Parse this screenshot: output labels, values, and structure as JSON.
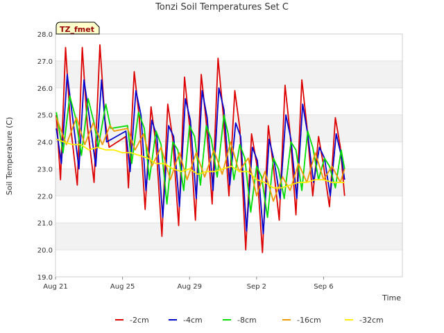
{
  "chart_data": {
    "type": "line",
    "title": "Tonzi Soil Temperatures Set C",
    "xlabel": "Time",
    "ylabel": "Soil Temperature (C)",
    "site_badge": "TZ_fmet",
    "x_start": "Aug 21",
    "x_range_days": [
      0,
      20.7
    ],
    "xticks": [
      {
        "label": "Aug 21",
        "day": 0
      },
      {
        "label": "Aug 25",
        "day": 4
      },
      {
        "label": "Aug 29",
        "day": 8
      },
      {
        "label": "Sep 2",
        "day": 12
      },
      {
        "label": "Sep 6",
        "day": 16
      }
    ],
    "ylim": [
      19.0,
      28.0
    ],
    "yticks": [
      "19.0",
      "20.0",
      "21.0",
      "22.0",
      "23.0",
      "24.0",
      "25.0",
      "26.0",
      "27.0",
      "28.0"
    ],
    "grid": "horizontal alternating bands",
    "legend_position": "bottom",
    "series": [
      {
        "name": "-2cm",
        "color": "#dd0000",
        "points": [
          [
            0.05,
            25.0
          ],
          [
            0.3,
            22.6
          ],
          [
            0.6,
            27.5
          ],
          [
            0.9,
            24.6
          ],
          [
            1.3,
            22.4
          ],
          [
            1.6,
            27.5
          ],
          [
            1.9,
            24.6
          ],
          [
            2.3,
            22.5
          ],
          [
            2.65,
            27.6
          ],
          [
            2.95,
            24.8
          ],
          [
            3.2,
            23.8
          ],
          [
            4.2,
            24.2
          ],
          [
            4.35,
            22.3
          ],
          [
            4.7,
            26.6
          ],
          [
            5.0,
            24.9
          ],
          [
            5.35,
            21.5
          ],
          [
            5.7,
            25.3
          ],
          [
            6.0,
            23.9
          ],
          [
            6.35,
            20.5
          ],
          [
            6.7,
            25.4
          ],
          [
            7.0,
            24.1
          ],
          [
            7.35,
            20.9
          ],
          [
            7.7,
            26.4
          ],
          [
            8.0,
            24.6
          ],
          [
            8.35,
            21.1
          ],
          [
            8.7,
            26.5
          ],
          [
            9.0,
            24.7
          ],
          [
            9.35,
            21.7
          ],
          [
            9.7,
            27.1
          ],
          [
            10.0,
            25.1
          ],
          [
            10.35,
            22.0
          ],
          [
            10.7,
            25.9
          ],
          [
            11.0,
            24.5
          ],
          [
            11.35,
            20.0
          ],
          [
            11.7,
            24.3
          ],
          [
            12.0,
            23.2
          ],
          [
            12.35,
            19.9
          ],
          [
            12.7,
            24.6
          ],
          [
            13.0,
            23.1
          ],
          [
            13.35,
            21.1
          ],
          [
            13.7,
            26.1
          ],
          [
            14.0,
            24.3
          ],
          [
            14.35,
            21.3
          ],
          [
            14.7,
            26.3
          ],
          [
            15.0,
            24.6
          ],
          [
            15.35,
            22.0
          ],
          [
            15.7,
            24.2
          ],
          [
            16.0,
            23.1
          ],
          [
            16.35,
            21.6
          ],
          [
            16.7,
            24.9
          ],
          [
            17.0,
            23.8
          ],
          [
            17.25,
            22.0
          ]
        ]
      },
      {
        "name": "-4cm",
        "color": "#0000cc",
        "points": [
          [
            0.05,
            24.5
          ],
          [
            0.35,
            23.2
          ],
          [
            0.7,
            26.5
          ],
          [
            1.0,
            25.0
          ],
          [
            1.4,
            23.0
          ],
          [
            1.7,
            26.3
          ],
          [
            2.0,
            25.0
          ],
          [
            2.4,
            23.1
          ],
          [
            2.75,
            26.3
          ],
          [
            3.05,
            24.0
          ],
          [
            4.2,
            24.4
          ],
          [
            4.45,
            22.9
          ],
          [
            4.8,
            25.9
          ],
          [
            5.1,
            25.0
          ],
          [
            5.4,
            22.2
          ],
          [
            5.75,
            24.8
          ],
          [
            6.05,
            24.2
          ],
          [
            6.4,
            21.2
          ],
          [
            6.75,
            24.6
          ],
          [
            7.05,
            24.2
          ],
          [
            7.4,
            21.6
          ],
          [
            7.75,
            25.6
          ],
          [
            8.05,
            24.8
          ],
          [
            8.4,
            21.9
          ],
          [
            8.75,
            25.9
          ],
          [
            9.05,
            24.9
          ],
          [
            9.4,
            22.2
          ],
          [
            9.75,
            26.0
          ],
          [
            10.05,
            25.2
          ],
          [
            10.4,
            22.4
          ],
          [
            10.75,
            24.7
          ],
          [
            11.05,
            24.2
          ],
          [
            11.4,
            20.7
          ],
          [
            11.75,
            23.8
          ],
          [
            12.05,
            23.3
          ],
          [
            12.4,
            20.6
          ],
          [
            12.75,
            24.1
          ],
          [
            13.05,
            23.3
          ],
          [
            13.4,
            21.9
          ],
          [
            13.75,
            25.0
          ],
          [
            14.05,
            24.1
          ],
          [
            14.4,
            21.9
          ],
          [
            14.75,
            25.4
          ],
          [
            15.05,
            24.3
          ],
          [
            15.4,
            22.5
          ],
          [
            15.75,
            23.8
          ],
          [
            16.05,
            23.4
          ],
          [
            16.4,
            22.0
          ],
          [
            16.75,
            24.3
          ],
          [
            17.05,
            23.5
          ],
          [
            17.25,
            22.6
          ]
        ]
      },
      {
        "name": "-8cm",
        "color": "#00dd00",
        "points": [
          [
            0.05,
            25.1
          ],
          [
            0.45,
            23.6
          ],
          [
            0.85,
            25.7
          ],
          [
            1.2,
            24.9
          ],
          [
            1.55,
            23.5
          ],
          [
            1.95,
            25.6
          ],
          [
            2.3,
            24.7
          ],
          [
            2.55,
            23.8
          ],
          [
            3.0,
            25.4
          ],
          [
            3.3,
            24.5
          ],
          [
            4.3,
            24.6
          ],
          [
            4.55,
            23.2
          ],
          [
            4.95,
            25.1
          ],
          [
            5.3,
            24.5
          ],
          [
            5.6,
            22.6
          ],
          [
            6.0,
            24.4
          ],
          [
            6.3,
            23.9
          ],
          [
            6.65,
            21.7
          ],
          [
            7.0,
            24.0
          ],
          [
            7.3,
            23.7
          ],
          [
            7.65,
            22.2
          ],
          [
            8.0,
            24.6
          ],
          [
            8.3,
            24.2
          ],
          [
            8.65,
            22.4
          ],
          [
            9.0,
            24.6
          ],
          [
            9.3,
            24.1
          ],
          [
            9.65,
            22.7
          ],
          [
            10.05,
            25.0
          ],
          [
            10.3,
            24.3
          ],
          [
            10.65,
            22.6
          ],
          [
            11.0,
            23.9
          ],
          [
            11.3,
            23.4
          ],
          [
            11.65,
            21.4
          ],
          [
            12.0,
            23.1
          ],
          [
            12.3,
            22.7
          ],
          [
            12.65,
            21.2
          ],
          [
            13.0,
            23.4
          ],
          [
            13.3,
            23.0
          ],
          [
            13.65,
            21.9
          ],
          [
            14.05,
            24.0
          ],
          [
            14.35,
            23.7
          ],
          [
            14.7,
            22.2
          ],
          [
            15.05,
            24.4
          ],
          [
            15.35,
            23.8
          ],
          [
            15.7,
            22.6
          ],
          [
            16.05,
            23.4
          ],
          [
            16.35,
            23.1
          ],
          [
            16.7,
            22.3
          ],
          [
            17.05,
            23.7
          ],
          [
            17.25,
            23.0
          ]
        ]
      },
      {
        "name": "-16cm",
        "color": "#ee9900",
        "points": [
          [
            0.05,
            24.9
          ],
          [
            0.65,
            23.9
          ],
          [
            1.25,
            24.9
          ],
          [
            1.75,
            23.9
          ],
          [
            2.25,
            24.7
          ],
          [
            2.8,
            23.9
          ],
          [
            3.25,
            24.6
          ],
          [
            3.5,
            24.4
          ],
          [
            4.3,
            24.5
          ],
          [
            4.75,
            23.7
          ],
          [
            5.25,
            24.3
          ],
          [
            5.75,
            23.1
          ],
          [
            6.3,
            23.8
          ],
          [
            6.85,
            22.6
          ],
          [
            7.4,
            23.6
          ],
          [
            7.85,
            22.6
          ],
          [
            8.4,
            23.6
          ],
          [
            8.9,
            22.7
          ],
          [
            9.45,
            23.7
          ],
          [
            9.95,
            22.8
          ],
          [
            10.45,
            24.0
          ],
          [
            10.95,
            22.9
          ],
          [
            11.5,
            23.4
          ],
          [
            12.0,
            22.0
          ],
          [
            12.5,
            22.9
          ],
          [
            13.0,
            21.8
          ],
          [
            13.55,
            22.7
          ],
          [
            14.0,
            22.2
          ],
          [
            14.5,
            23.2
          ],
          [
            15.0,
            22.5
          ],
          [
            15.5,
            23.6
          ],
          [
            16.0,
            22.6
          ],
          [
            16.5,
            23.1
          ],
          [
            17.0,
            22.5
          ],
          [
            17.25,
            23.0
          ]
        ]
      },
      {
        "name": "-32cm",
        "color": "#ffee00",
        "points": [
          [
            0.05,
            24.1
          ],
          [
            0.5,
            24.0
          ],
          [
            1.0,
            23.9
          ],
          [
            1.5,
            23.9
          ],
          [
            2.0,
            23.7
          ],
          [
            2.5,
            23.8
          ],
          [
            3.0,
            23.7
          ],
          [
            3.5,
            23.7
          ],
          [
            4.0,
            23.6
          ],
          [
            4.5,
            23.6
          ],
          [
            5.0,
            23.5
          ],
          [
            5.5,
            23.4
          ],
          [
            6.0,
            23.2
          ],
          [
            6.5,
            23.2
          ],
          [
            7.0,
            23.0
          ],
          [
            7.5,
            22.9
          ],
          [
            8.0,
            23.0
          ],
          [
            8.5,
            22.8
          ],
          [
            9.0,
            22.9
          ],
          [
            9.5,
            22.9
          ],
          [
            10.0,
            23.0
          ],
          [
            10.5,
            23.1
          ],
          [
            11.0,
            22.9
          ],
          [
            11.5,
            22.9
          ],
          [
            12.0,
            22.6
          ],
          [
            12.5,
            22.5
          ],
          [
            13.0,
            22.3
          ],
          [
            13.5,
            22.3
          ],
          [
            14.0,
            22.4
          ],
          [
            14.5,
            22.5
          ],
          [
            15.0,
            22.5
          ],
          [
            15.5,
            22.6
          ],
          [
            16.0,
            22.6
          ],
          [
            16.5,
            22.5
          ],
          [
            17.0,
            22.5
          ],
          [
            17.25,
            22.5
          ]
        ]
      }
    ]
  }
}
